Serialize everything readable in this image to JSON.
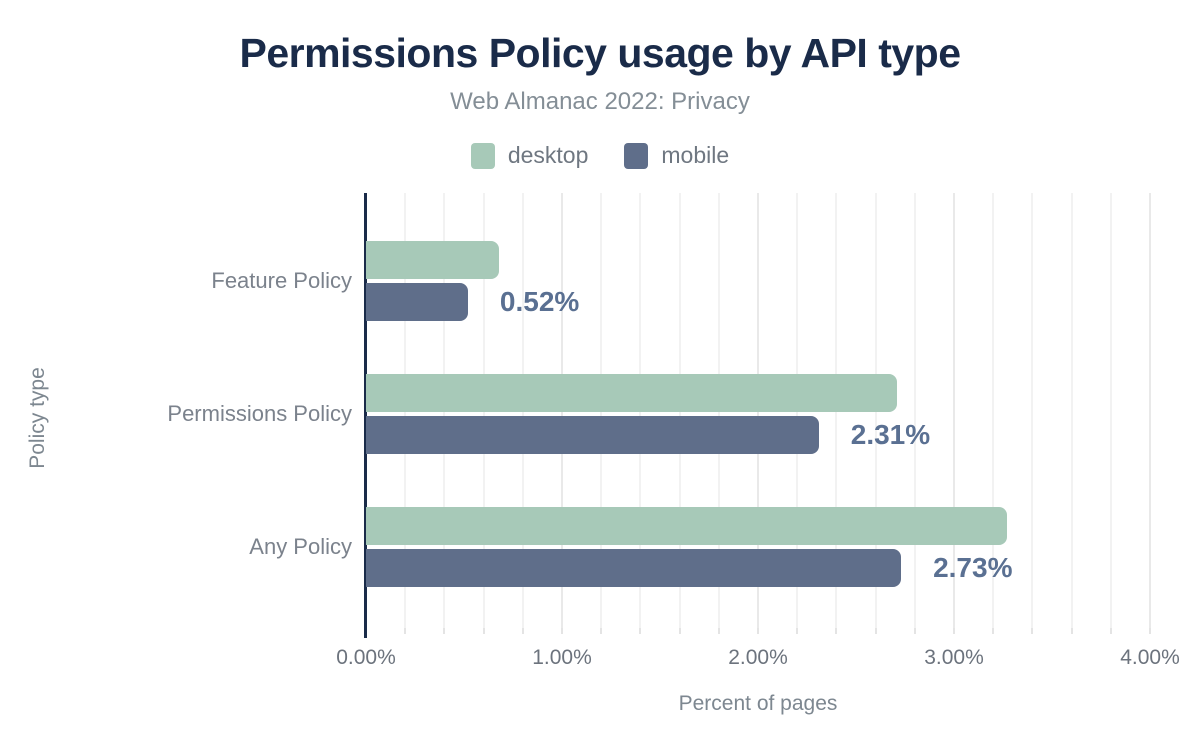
{
  "header": {
    "title": "Permissions Policy usage by API type",
    "subtitle": "Web Almanac 2022: Privacy"
  },
  "legend": {
    "items": [
      {
        "label": "desktop",
        "color": "#a7c9b8"
      },
      {
        "label": "mobile",
        "color": "#5f6e8a"
      }
    ]
  },
  "chart_data": {
    "type": "bar",
    "orientation": "horizontal",
    "title": "Permissions Policy usage by API type",
    "subtitle": "Web Almanac 2022: Privacy",
    "categories": [
      "Feature Policy",
      "Permissions Policy",
      "Any Policy"
    ],
    "series": [
      {
        "name": "desktop",
        "color": "#a7c9b8",
        "values": [
          0.68,
          2.71,
          3.27
        ]
      },
      {
        "name": "mobile",
        "color": "#5f6e8a",
        "values": [
          0.52,
          2.31,
          2.73
        ]
      }
    ],
    "data_labels": {
      "series": "mobile",
      "values": [
        "0.52%",
        "2.31%",
        "2.73%"
      ]
    },
    "xlabel": "Percent of pages",
    "ylabel": "Policy type",
    "xlim": [
      0,
      4
    ],
    "xticks": {
      "values": [
        0,
        1,
        2,
        3,
        4
      ],
      "labels": [
        "0.00%",
        "1.00%",
        "2.00%",
        "3.00%",
        "4.00%"
      ]
    },
    "grid": {
      "show": true,
      "minor_step": 0.2,
      "major_step": 1.0,
      "direction": "vertical"
    },
    "legend_position": "top"
  },
  "colors": {
    "background": "#ffffff",
    "title": "#1a2b49",
    "subtitle": "#848e96",
    "axis_line": "#1a2b49",
    "tick_label": "#6c737d",
    "category_label": "#7b828c",
    "data_label": "#5a7092",
    "grid_minor": "#f2f2f2",
    "grid_major": "#e9e9e9"
  }
}
